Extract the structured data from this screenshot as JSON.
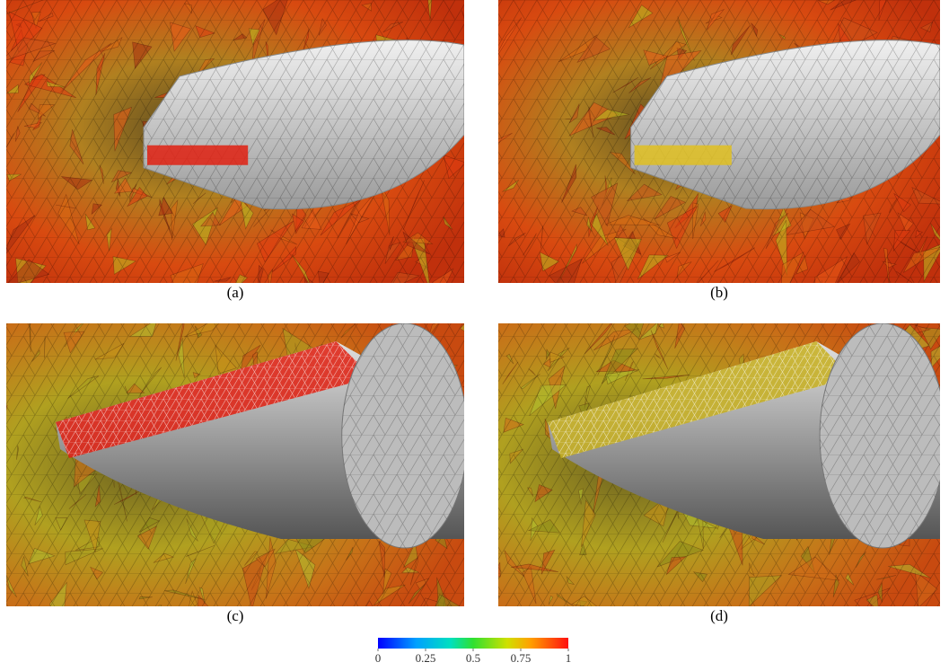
{
  "panels": [
    {
      "label": "(a)"
    },
    {
      "label": "(b)"
    },
    {
      "label": "(c)"
    },
    {
      "label": "(d)"
    }
  ],
  "colorbar": {
    "ticks": [
      0,
      0.25,
      0.5,
      0.75,
      1
    ],
    "range": [
      0,
      1
    ]
  }
}
